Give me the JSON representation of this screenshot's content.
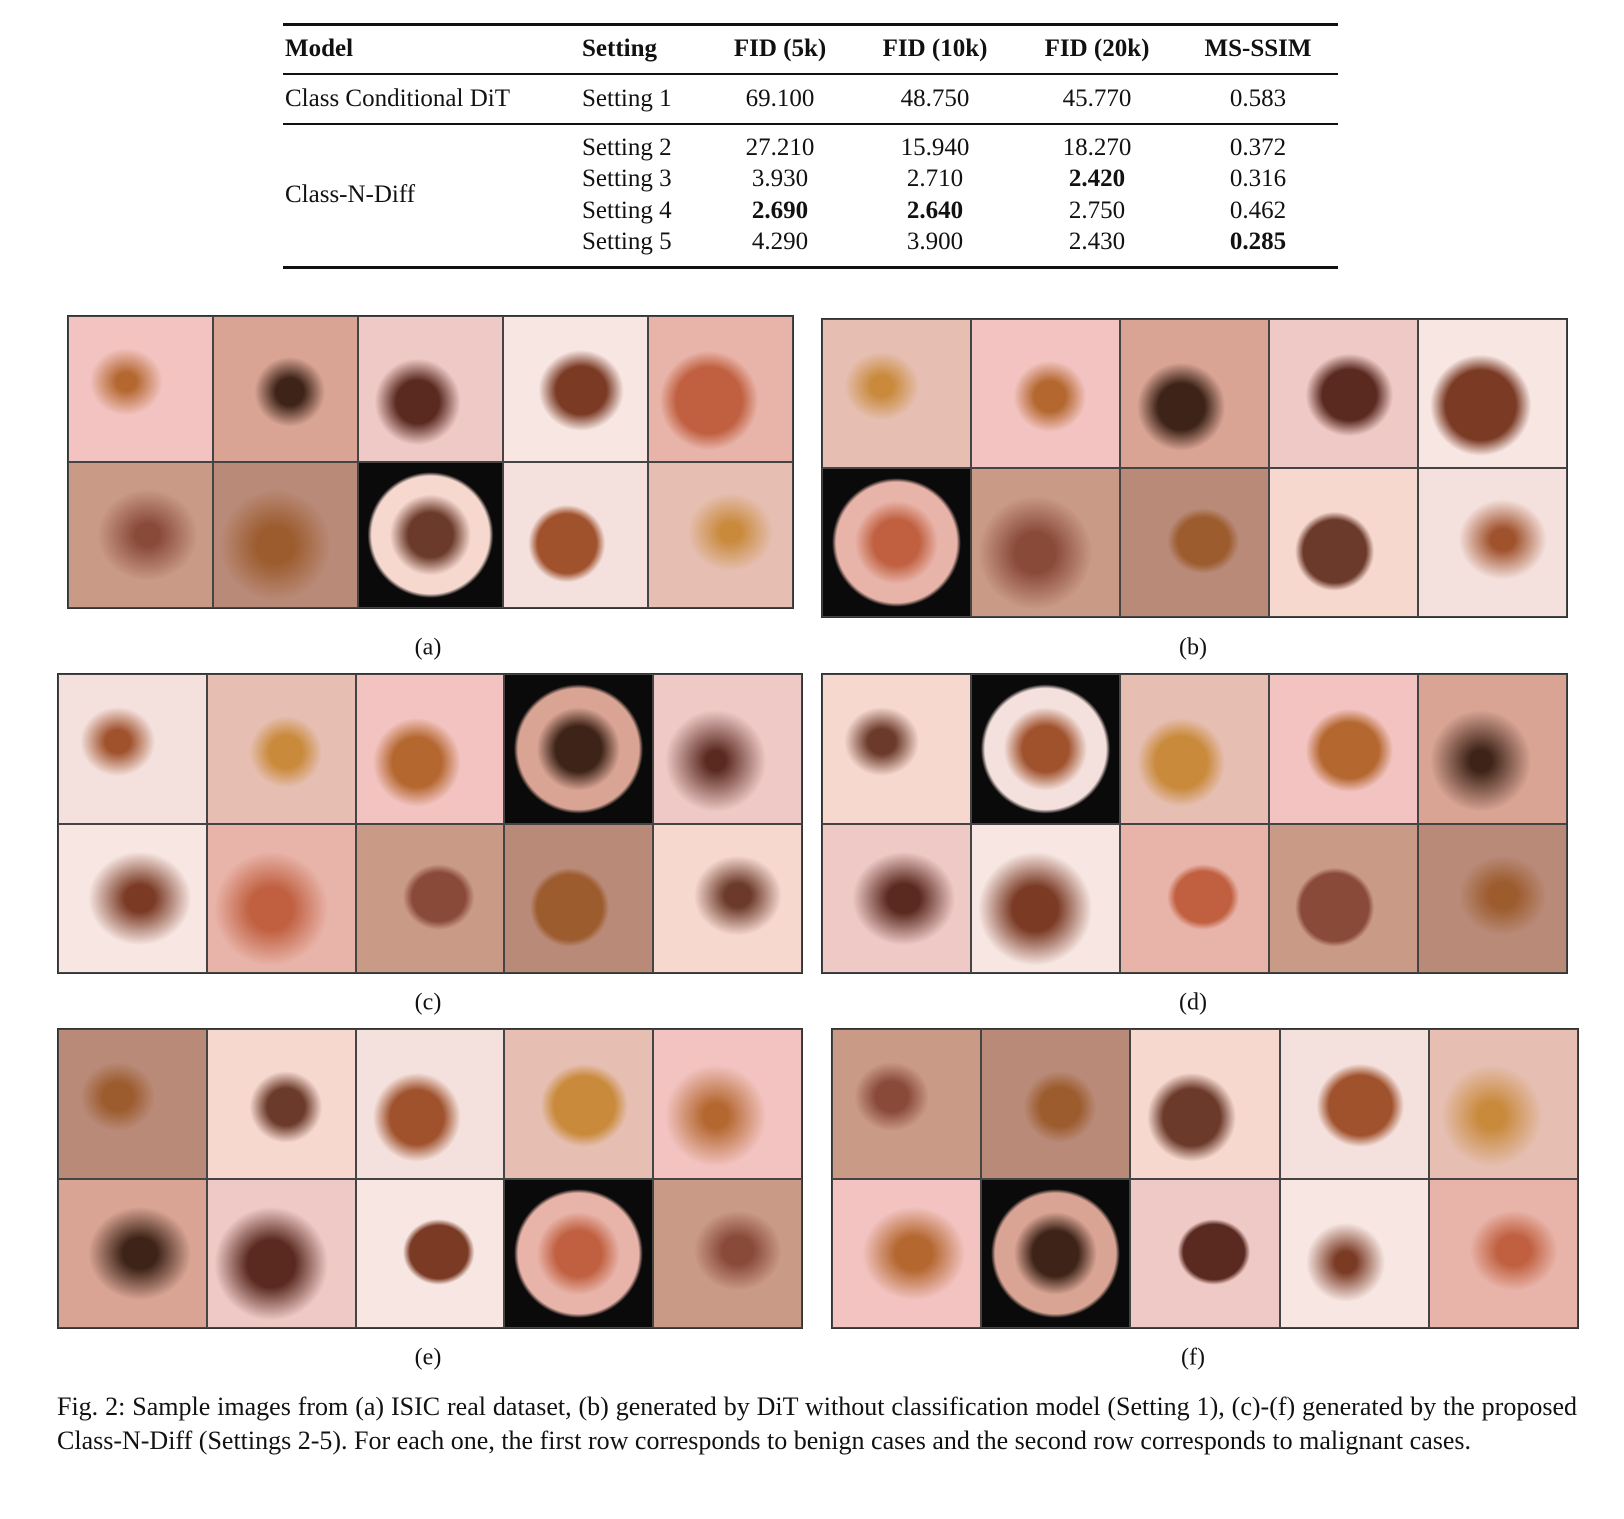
{
  "table": {
    "header": [
      "Model",
      "Setting",
      "FID (5k)",
      "FID (10k)",
      "FID (20k)",
      "MS-SSIM"
    ],
    "groups": [
      {
        "model": "Class Conditional DiT",
        "rows": [
          {
            "cells": [
              "Setting 1",
              "69.100",
              "48.750",
              "45.770",
              "0.583"
            ],
            "bold": []
          }
        ]
      },
      {
        "model": "Class-N-Diff",
        "rows": [
          {
            "cells": [
              "Setting 2",
              "27.210",
              "15.940",
              "18.270",
              "0.372"
            ],
            "bold": []
          },
          {
            "cells": [
              "Setting 3",
              "3.930",
              "2.710",
              "2.420",
              "0.316"
            ],
            "bold": [
              3
            ]
          },
          {
            "cells": [
              "Setting 4",
              "2.690",
              "2.640",
              "2.750",
              "0.462"
            ],
            "bold": [
              1,
              2
            ]
          },
          {
            "cells": [
              "Setting 5",
              "4.290",
              "3.900",
              "2.430",
              "0.285"
            ],
            "bold": [
              4
            ]
          }
        ]
      }
    ]
  },
  "panels": [
    {
      "label": "(a)"
    },
    {
      "label": "(b)"
    },
    {
      "label": "(c)"
    },
    {
      "label": "(d)"
    },
    {
      "label": "(e)"
    },
    {
      "label": "(f)"
    }
  ],
  "caption": "Fig. 2: Sample images from (a) ISIC real dataset, (b) generated by DiT without classification model (Setting 1), (c)-(f) generated by the proposed Class-N-Diff (Settings 2-5). For each one, the first row corresponds to benign cases and the second row corresponds to malignant cases."
}
